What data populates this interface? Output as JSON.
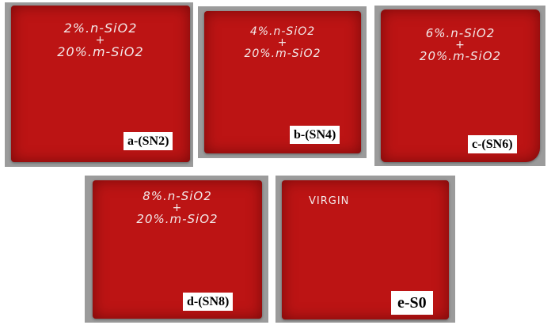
{
  "colors": {
    "sheet_red": "#bc1414",
    "background_gray": "#9b9b9b",
    "label_bg": "#ffffff",
    "handwriting": "#f3e9e9"
  },
  "samples": [
    {
      "handwriting_line1": "2%.n-SiO2",
      "plus": "+",
      "handwriting_line2": "20%.m-SiO2",
      "label": "a-(SN2)"
    },
    {
      "handwriting_line1": "4%.n-SiO2",
      "plus": "+",
      "handwriting_line2": "20%.m-SiO2",
      "label": "b-(SN4)"
    },
    {
      "handwriting_line1": "6%.n-SiO2",
      "plus": "+",
      "handwriting_line2": "20%.m-SiO2",
      "label": "c-(SN6)"
    },
    {
      "handwriting_line1": "8%.n-SiO2",
      "plus": "+",
      "handwriting_line2": "20%.m-SiO2",
      "label": "d-(SN8)"
    },
    {
      "handwriting_line1": "VIRGIN",
      "label": "e-S0"
    }
  ]
}
